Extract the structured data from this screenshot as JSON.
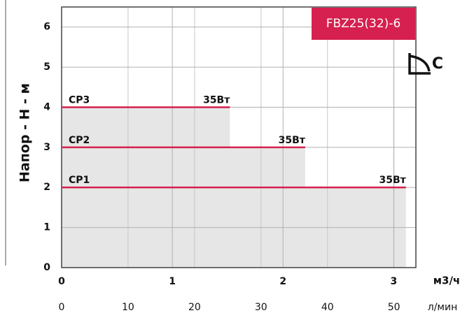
{
  "chart_data": {
    "type": "line",
    "title": "FBZ25(32)-6",
    "badge": "C",
    "ylabel": "Напор - Н - м",
    "xlabel": "м3/ч",
    "x2label": "л/мин",
    "xlim": [
      0,
      3.2
    ],
    "xticks": [
      0,
      1,
      2,
      3
    ],
    "x2lim": [
      0,
      53.3
    ],
    "x2ticks": [
      0,
      10,
      20,
      30,
      40,
      50
    ],
    "ylim": [
      0,
      6.5
    ],
    "yticks": [
      0,
      1,
      2,
      3,
      4,
      5,
      6
    ],
    "grid": true,
    "series": [
      {
        "name": "CP1",
        "color": "#d6204f",
        "x": [
          0,
          3.11
        ],
        "values": [
          2,
          2
        ],
        "annotation": "35Вт"
      },
      {
        "name": "CP2",
        "color": "#d6204f",
        "x": [
          0,
          2.2
        ],
        "values": [
          3,
          3
        ],
        "annotation": "35Вт"
      },
      {
        "name": "CP3",
        "color": "#d6204f",
        "x": [
          0,
          1.52
        ],
        "values": [
          4,
          4
        ],
        "annotation": "35Вт"
      }
    ]
  }
}
